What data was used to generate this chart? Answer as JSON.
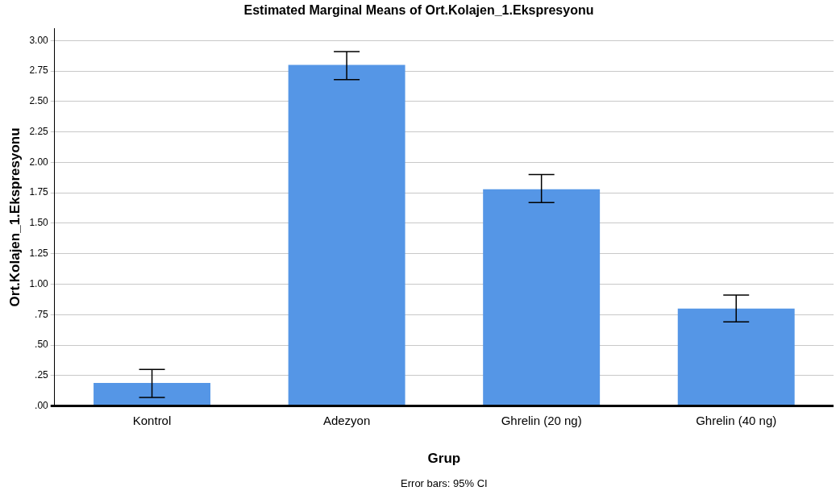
{
  "chart_data": {
    "type": "bar",
    "title": "Estimated Marginal Means of Ort.Kolajen_1.Ekspresyonu",
    "xlabel": "Grup",
    "ylabel": "Ort.Kolajen_1.Ekspresyonu",
    "categories": [
      "Kontrol",
      "Adezyon",
      "Ghrelin (20 ng)",
      "Ghrelin (40 ng)"
    ],
    "values": [
      0.19,
      2.8,
      1.78,
      0.8
    ],
    "color": "#5596e6",
    "errors": [
      [
        0.07,
        0.3
      ],
      [
        2.68,
        2.91
      ],
      [
        1.67,
        1.9
      ],
      [
        0.69,
        0.91
      ]
    ],
    "ylim": [
      0,
      3.1
    ],
    "yticks": [
      {
        "value": 0,
        "label": ".00"
      },
      {
        "value": 0.25,
        "label": ".25"
      },
      {
        "value": 0.5,
        "label": ".50"
      },
      {
        "value": 0.75,
        "label": ".75"
      },
      {
        "value": 1,
        "label": "1.00"
      },
      {
        "value": 1.25,
        "label": "1.25"
      },
      {
        "value": 1.5,
        "label": "1.50"
      },
      {
        "value": 1.75,
        "label": "1.75"
      },
      {
        "value": 2,
        "label": "2.00"
      },
      {
        "value": 2.25,
        "label": "2.25"
      },
      {
        "value": 2.5,
        "label": "2.50"
      },
      {
        "value": 2.75,
        "label": "2.75"
      },
      {
        "value": 3,
        "label": "3.00"
      }
    ],
    "grid": "y",
    "annotations": [
      "Error bars: 95% CI"
    ]
  }
}
